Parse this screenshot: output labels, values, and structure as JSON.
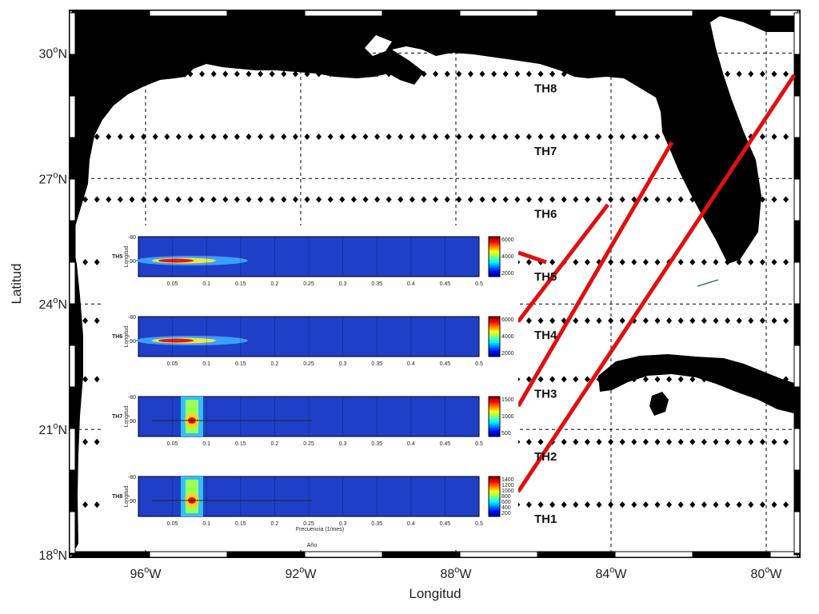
{
  "map": {
    "xlabel": "Longitud",
    "ylabel": "Latitud",
    "lon_ticks": [
      {
        "lon": -96,
        "num": "96",
        "deg": "o",
        "dir": "W"
      },
      {
        "lon": -92,
        "num": "92",
        "deg": "o",
        "dir": "W"
      },
      {
        "lon": -88,
        "num": "88",
        "deg": "o",
        "dir": "W"
      },
      {
        "lon": -84,
        "num": "84",
        "deg": "o",
        "dir": "W"
      },
      {
        "lon": -80,
        "num": "80",
        "deg": "o",
        "dir": "W"
      }
    ],
    "lat_ticks": [
      {
        "lat": 30,
        "num": "30",
        "deg": "o",
        "dir": "N"
      },
      {
        "lat": 27,
        "num": "27",
        "deg": "o",
        "dir": "N"
      },
      {
        "lat": 24,
        "num": "24",
        "deg": "o",
        "dir": "N"
      },
      {
        "lat": 21,
        "num": "21",
        "deg": "o",
        "dir": "N"
      },
      {
        "lat": 18,
        "num": "18",
        "deg": "o",
        "dir": "N"
      }
    ],
    "transects": [
      {
        "label": "TH8",
        "lat": 29.5
      },
      {
        "label": "TH7",
        "lat": 28.0
      },
      {
        "label": "TH6",
        "lat": 26.5
      },
      {
        "label": "TH5",
        "lat": 25.0
      },
      {
        "label": "TH4",
        "lat": 23.6
      },
      {
        "label": "TH3",
        "lat": 22.2
      },
      {
        "label": "TH2",
        "lat": 20.7
      },
      {
        "label": "TH1",
        "lat": 19.2
      }
    ],
    "colors": {
      "land": "#000000",
      "ocean": "#ffffff",
      "lines": "#e01010",
      "markers": "#000000"
    }
  },
  "inset": {
    "xlabel": "Frecuencia (1/mes)",
    "ylabel": "Longitud",
    "cut_label": "Año",
    "freq_ticks": [
      "0.05",
      "0.1",
      "0.15",
      "0.2",
      "0.25",
      "0.3",
      "0.35",
      "0.4",
      "0.45",
      "0.5"
    ],
    "panels": [
      {
        "name": "TH5",
        "y_ticks": [
          "-80",
          "-90"
        ],
        "cbar_ticks": [
          "6000",
          "4000",
          "2000"
        ]
      },
      {
        "name": "TH6",
        "y_ticks": [
          "-80",
          "-90"
        ],
        "cbar_ticks": [
          "6000",
          "4000",
          "2000"
        ]
      },
      {
        "name": "TH7",
        "y_ticks": [
          "-80",
          "-90"
        ],
        "cbar_ticks": [
          "1500",
          "1000",
          "500"
        ]
      },
      {
        "name": "TH8",
        "y_ticks": [
          "-80",
          "-90"
        ],
        "cbar_ticks": [
          "1400",
          "1200",
          "1000",
          "800",
          "600",
          "400",
          "200"
        ]
      }
    ]
  }
}
